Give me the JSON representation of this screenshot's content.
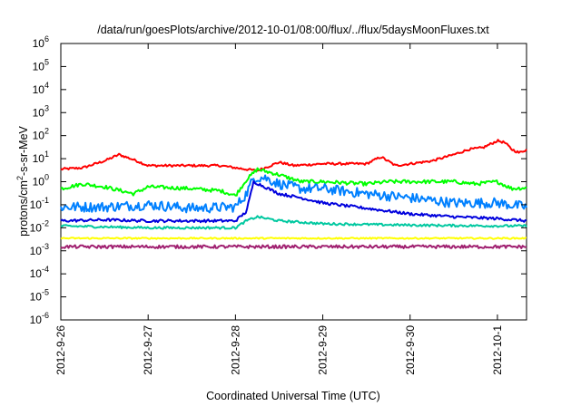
{
  "chart_data": {
    "type": "line",
    "title": "/data/run/goesPlots/archive/2012-10-01/08:00/flux/../flux/5daysMoonFluxes.txt",
    "xlabel": "Coordinated Universal Time (UTC)",
    "ylabel": {
      "main": "protons/cm",
      "sup": "2",
      "rest": "-s-sr-MeV"
    },
    "y_scale": "log",
    "ylim": [
      -6,
      6
    ],
    "y_ticks": [
      {
        "exp": 6,
        "label": "10",
        "sup": "6"
      },
      {
        "exp": 5,
        "label": "10",
        "sup": "5"
      },
      {
        "exp": 4,
        "label": "10",
        "sup": "4"
      },
      {
        "exp": 3,
        "label": "10",
        "sup": "3"
      },
      {
        "exp": 2,
        "label": "10",
        "sup": "2"
      },
      {
        "exp": 1,
        "label": "10",
        "sup": "1"
      },
      {
        "exp": 0,
        "label": "10",
        "sup": "0"
      },
      {
        "exp": -1,
        "label": "10",
        "sup": "-1"
      },
      {
        "exp": -2,
        "label": "10",
        "sup": "-2"
      },
      {
        "exp": -3,
        "label": "10",
        "sup": "-3"
      },
      {
        "exp": -4,
        "label": "10",
        "sup": "-4"
      },
      {
        "exp": -5,
        "label": "10",
        "sup": "-5"
      },
      {
        "exp": -6,
        "label": "10",
        "sup": "-6"
      }
    ],
    "xlim": [
      "2012-09-26 00:00",
      "2012-10-01 08:00"
    ],
    "x_ticks": [
      {
        "date": "2012-09-26 00:00",
        "label": "2012-9-26"
      },
      {
        "date": "2012-09-27 00:00",
        "label": "2012-9-27"
      },
      {
        "date": "2012-09-28 00:00",
        "label": "2012-9-28"
      },
      {
        "date": "2012-09-29 00:00",
        "label": "2012-9-29"
      },
      {
        "date": "2012-09-30 00:00",
        "label": "2012-9-30"
      },
      {
        "date": "2012-10-01 00:00",
        "label": "2012-10-1"
      }
    ],
    "grid": false,
    "legend": "none",
    "series": [
      {
        "color": "#ff0000",
        "noise": 0.05,
        "points": [
          [
            "2012-09-26 00:00",
            3.5
          ],
          [
            "2012-09-26 06:00",
            4
          ],
          [
            "2012-09-26 12:00",
            8
          ],
          [
            "2012-09-26 16:00",
            15
          ],
          [
            "2012-09-26 20:00",
            9
          ],
          [
            "2012-09-27 00:00",
            5
          ],
          [
            "2012-09-27 12:00",
            5
          ],
          [
            "2012-09-27 20:00",
            5
          ],
          [
            "2012-09-28 00:00",
            4
          ],
          [
            "2012-09-28 06:00",
            3
          ],
          [
            "2012-09-28 12:00",
            7
          ],
          [
            "2012-09-28 16:00",
            5
          ],
          [
            "2012-09-29 00:00",
            6
          ],
          [
            "2012-09-29 12:00",
            6
          ],
          [
            "2012-09-29 16:00",
            12
          ],
          [
            "2012-09-29 20:00",
            5
          ],
          [
            "2012-09-30 00:00",
            6
          ],
          [
            "2012-09-30 06:00",
            8
          ],
          [
            "2012-09-30 12:00",
            15
          ],
          [
            "2012-09-30 16:00",
            25
          ],
          [
            "2012-09-30 20:00",
            30
          ],
          [
            "2012-10-01 00:00",
            60
          ],
          [
            "2012-10-01 02:00",
            50
          ],
          [
            "2012-10-01 04:00",
            25
          ],
          [
            "2012-10-01 06:00",
            18
          ],
          [
            "2012-10-01 08:00",
            25
          ]
        ]
      },
      {
        "color": "#00ff00",
        "noise": 0.08,
        "points": [
          [
            "2012-09-26 00:00",
            0.5
          ],
          [
            "2012-09-26 06:00",
            0.8
          ],
          [
            "2012-09-26 12:00",
            0.6
          ],
          [
            "2012-09-26 20:00",
            0.3
          ],
          [
            "2012-09-27 00:00",
            0.6
          ],
          [
            "2012-09-27 12:00",
            0.5
          ],
          [
            "2012-09-27 20:00",
            0.4
          ],
          [
            "2012-09-28 00:00",
            0.25
          ],
          [
            "2012-09-28 03:00",
            1.2
          ],
          [
            "2012-09-28 06:00",
            3.5
          ],
          [
            "2012-09-28 12:00",
            2
          ],
          [
            "2012-09-28 18:00",
            1
          ],
          [
            "2012-09-29 00:00",
            1
          ],
          [
            "2012-09-29 12:00",
            0.8
          ],
          [
            "2012-09-29 18:00",
            1
          ],
          [
            "2012-09-30 00:00",
            1
          ],
          [
            "2012-09-30 12:00",
            1
          ],
          [
            "2012-09-30 18:00",
            0.8
          ],
          [
            "2012-10-01 00:00",
            1
          ],
          [
            "2012-10-01 04:00",
            0.5
          ],
          [
            "2012-10-01 08:00",
            0.55
          ]
        ]
      },
      {
        "color": "#0080ff",
        "noise": 0.22,
        "points": [
          [
            "2012-09-26 00:00",
            0.08
          ],
          [
            "2012-09-26 12:00",
            0.08
          ],
          [
            "2012-09-27 00:00",
            0.1
          ],
          [
            "2012-09-27 12:00",
            0.07
          ],
          [
            "2012-09-28 00:00",
            0.08
          ],
          [
            "2012-09-28 03:00",
            0.3
          ],
          [
            "2012-09-28 05:00",
            1.5
          ],
          [
            "2012-09-28 08:00",
            1.5
          ],
          [
            "2012-09-28 12:00",
            0.8
          ],
          [
            "2012-09-28 18:00",
            0.5
          ],
          [
            "2012-09-29 00:00",
            0.5
          ],
          [
            "2012-09-29 12:00",
            0.3
          ],
          [
            "2012-09-30 00:00",
            0.2
          ],
          [
            "2012-09-30 12:00",
            0.12
          ],
          [
            "2012-10-01 00:00",
            0.12
          ],
          [
            "2012-10-01 08:00",
            0.08
          ]
        ]
      },
      {
        "color": "#0000dd",
        "noise": 0.06,
        "points": [
          [
            "2012-09-26 00:00",
            0.02
          ],
          [
            "2012-09-26 12:00",
            0.022
          ],
          [
            "2012-09-27 00:00",
            0.02
          ],
          [
            "2012-09-27 12:00",
            0.02
          ],
          [
            "2012-09-28 00:00",
            0.02
          ],
          [
            "2012-09-28 03:00",
            0.05
          ],
          [
            "2012-09-28 05:00",
            1.0
          ],
          [
            "2012-09-28 08:00",
            0.6
          ],
          [
            "2012-09-28 12:00",
            0.3
          ],
          [
            "2012-09-28 18:00",
            0.2
          ],
          [
            "2012-09-29 00:00",
            0.12
          ],
          [
            "2012-09-29 12:00",
            0.07
          ],
          [
            "2012-09-30 00:00",
            0.04
          ],
          [
            "2012-09-30 12:00",
            0.03
          ],
          [
            "2012-10-01 00:00",
            0.025
          ],
          [
            "2012-10-01 08:00",
            0.02
          ]
        ]
      },
      {
        "color": "#00c8a0",
        "noise": 0.05,
        "points": [
          [
            "2012-09-26 00:00",
            0.012
          ],
          [
            "2012-09-27 00:00",
            0.01
          ],
          [
            "2012-09-28 00:00",
            0.01
          ],
          [
            "2012-09-28 03:00",
            0.02
          ],
          [
            "2012-09-28 06:00",
            0.03
          ],
          [
            "2012-09-28 12:00",
            0.02
          ],
          [
            "2012-09-29 00:00",
            0.015
          ],
          [
            "2012-09-30 00:00",
            0.013
          ],
          [
            "2012-10-01 00:00",
            0.012
          ],
          [
            "2012-10-01 08:00",
            0.012
          ]
        ]
      },
      {
        "color": "#ffff00",
        "noise": 0.03,
        "points": [
          [
            "2012-09-26 00:00",
            0.0035
          ],
          [
            "2012-09-27 00:00",
            0.0035
          ],
          [
            "2012-09-28 00:00",
            0.0035
          ],
          [
            "2012-09-29 00:00",
            0.0035
          ],
          [
            "2012-09-30 00:00",
            0.0035
          ],
          [
            "2012-10-01 00:00",
            0.0035
          ],
          [
            "2012-10-01 08:00",
            0.0035
          ]
        ]
      },
      {
        "color": "#a02070",
        "noise": 0.07,
        "points": [
          [
            "2012-09-26 00:00",
            0.0015
          ],
          [
            "2012-09-27 00:00",
            0.0015
          ],
          [
            "2012-09-28 00:00",
            0.0015
          ],
          [
            "2012-09-29 00:00",
            0.0015
          ],
          [
            "2012-09-30 00:00",
            0.0015
          ],
          [
            "2012-10-01 00:00",
            0.0015
          ],
          [
            "2012-10-01 08:00",
            0.0015
          ]
        ]
      }
    ]
  }
}
